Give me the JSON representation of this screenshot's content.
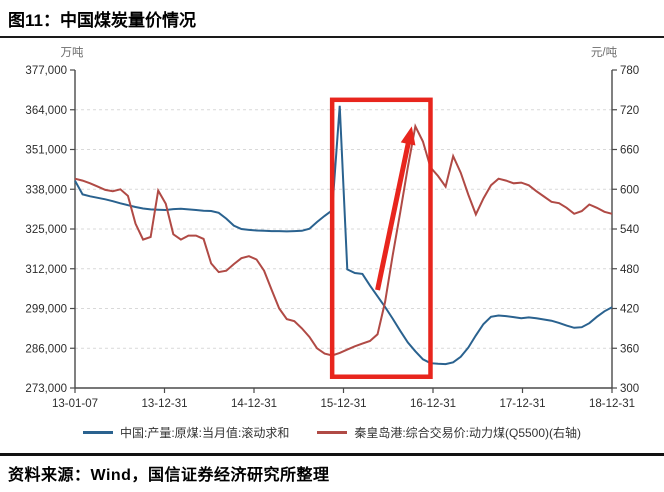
{
  "figure": {
    "title": "图11：中国煤炭量价情况",
    "source": "资料来源：Wind，国信证券经济研究所整理"
  },
  "chart_data": {
    "type": "line",
    "title": "中国煤炭量价情况",
    "grid": "horizontal-dashed",
    "legend_position": "bottom",
    "x_months": [
      "2013-01",
      "2013-02",
      "2013-03",
      "2013-04",
      "2013-05",
      "2013-06",
      "2013-07",
      "2013-08",
      "2013-09",
      "2013-10",
      "2013-11",
      "2013-12",
      "2014-01",
      "2014-02",
      "2014-03",
      "2014-04",
      "2014-05",
      "2014-06",
      "2014-07",
      "2014-08",
      "2014-09",
      "2014-10",
      "2014-11",
      "2014-12",
      "2015-01",
      "2015-02",
      "2015-03",
      "2015-04",
      "2015-05",
      "2015-06",
      "2015-07",
      "2015-08",
      "2015-09",
      "2015-10",
      "2015-11",
      "2015-12",
      "2016-01",
      "2016-02",
      "2016-03",
      "2016-04",
      "2016-05",
      "2016-06",
      "2016-07",
      "2016-08",
      "2016-09",
      "2016-10",
      "2016-11",
      "2016-12",
      "2017-01",
      "2017-02",
      "2017-03",
      "2017-04",
      "2017-05",
      "2017-06",
      "2017-07",
      "2017-08",
      "2017-09",
      "2017-10",
      "2017-11",
      "2017-12",
      "2018-01",
      "2018-02",
      "2018-03",
      "2018-04",
      "2018-05",
      "2018-06",
      "2018-07",
      "2018-08",
      "2018-09",
      "2018-10",
      "2018-11",
      "2018-12"
    ],
    "x_tick_labels": [
      "13-01-07",
      "13-12-31",
      "14-12-31",
      "15-12-31",
      "16-12-31",
      "17-12-31",
      "18-12-31"
    ],
    "left_axis": {
      "unit": "万吨",
      "min": 273000,
      "max": 377000,
      "tick_step": 13000,
      "tick_labels": [
        "377,000",
        "364,000",
        "351,000",
        "338,000",
        "325,000",
        "312,000",
        "299,000",
        "286,000",
        "273,000"
      ]
    },
    "right_axis": {
      "unit": "元/吨",
      "min": 300,
      "max": 780,
      "tick_step": 60,
      "tick_labels": [
        "780",
        "720",
        "660",
        "600",
        "540",
        "480",
        "420",
        "360",
        "300"
      ]
    },
    "series": [
      {
        "name": "中国:产量:原煤:当月值:滚动求和",
        "axis": "left",
        "color": "#2a628f",
        "values": [
          340800,
          336300,
          335700,
          335200,
          334700,
          334100,
          333400,
          332800,
          332200,
          331700,
          331400,
          331300,
          331200,
          331500,
          331600,
          331400,
          331200,
          331000,
          330900,
          330300,
          328400,
          326100,
          325000,
          324700,
          324500,
          324400,
          324300,
          324300,
          324200,
          324300,
          324400,
          325100,
          327300,
          329300,
          331100,
          365300,
          311800,
          310600,
          310300,
          306500,
          303000,
          299500,
          295700,
          291700,
          287900,
          285000,
          282400,
          281100,
          280900,
          280800,
          281400,
          283200,
          286200,
          290200,
          293900,
          296300,
          296700,
          296500,
          296200,
          295800,
          296100,
          295800,
          295400,
          295000,
          294300,
          293400,
          292700,
          292900,
          294200,
          296300,
          298100,
          299400
        ]
      },
      {
        "name": "秦皇岛港:综合交易价:动力煤(Q5500)(右轴)",
        "axis": "right",
        "color": "#b04a45",
        "values": [
          616,
          613,
          609,
          604,
          599,
          597,
          600,
          590,
          548,
          524,
          528,
          598,
          578,
          532,
          524,
          530,
          530,
          525,
          488,
          475,
          477,
          487,
          496,
          499,
          494,
          477,
          448,
          420,
          404,
          401,
          390,
          377,
          360,
          352,
          349,
          353,
          358,
          363,
          367,
          371,
          381,
          430,
          500,
          565,
          633,
          695,
          672,
          633,
          620,
          604,
          650,
          625,
          592,
          562,
          586,
          606,
          616,
          613,
          609,
          610,
          606,
          597,
          589,
          581,
          579,
          572,
          563,
          567,
          577,
          572,
          566,
          563
        ]
      }
    ],
    "annotations": {
      "highlight_box": {
        "month_from": "2015-11",
        "month_to": "2016-12",
        "right_value_from": 317,
        "right_value_to": 735,
        "color": "#e8251d"
      },
      "trend_arrow": {
        "month_from": "2016-05",
        "right_value_from": 448,
        "month_to": "2016-09",
        "right_value_to": 695,
        "color": "#e8251d"
      }
    }
  },
  "style": {
    "grid_color": "#d9d9d9",
    "axis_color": "#4a4a4a",
    "tick_text_color": "#2d2d2d",
    "unit_text_color": "#6e6e6e"
  }
}
